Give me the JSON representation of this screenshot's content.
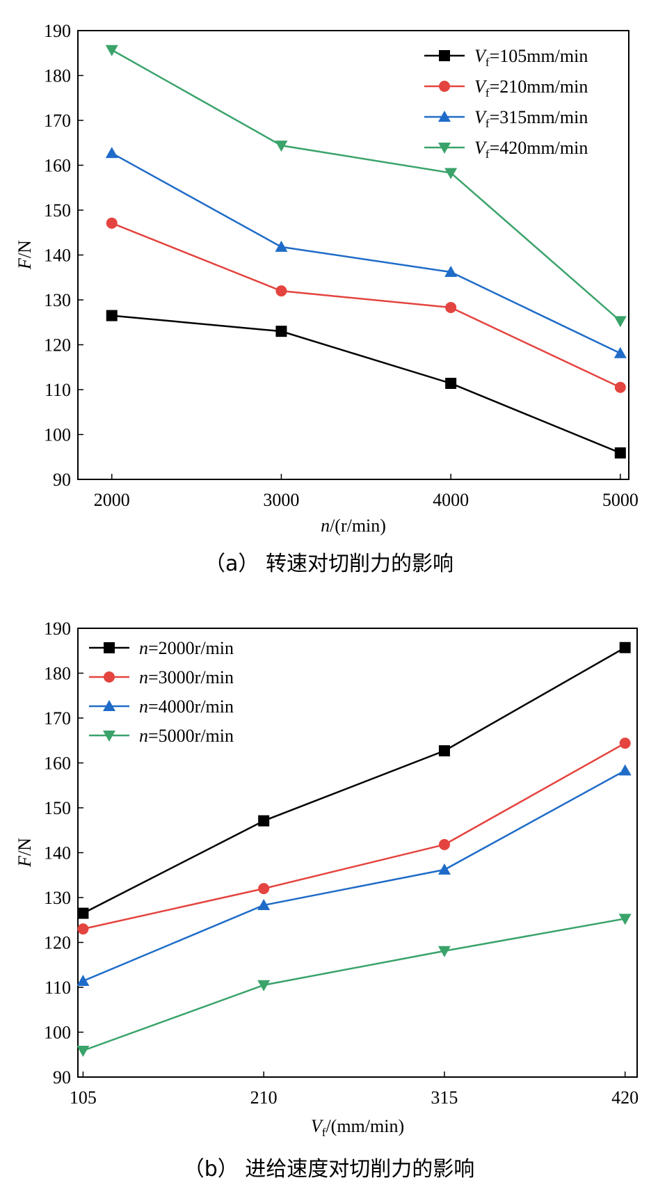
{
  "chart_data": [
    {
      "type": "line",
      "caption": "（a） 转速对切削力的影响",
      "x": [
        2000,
        3000,
        4000,
        5000
      ],
      "xlabel": "n/(r/min)",
      "ylabel": "F/N",
      "xlim": [
        1800,
        5050
      ],
      "ylim": [
        90,
        190
      ],
      "yticks": [
        90,
        100,
        110,
        120,
        130,
        140,
        150,
        160,
        170,
        180,
        190
      ],
      "legend_position": "top-right",
      "series": [
        {
          "name": "Vf=105mm/min",
          "values": [
            126.5,
            123.0,
            111.4,
            95.9
          ],
          "color": "#000000",
          "marker": "square"
        },
        {
          "name": "Vf=210mm/min",
          "values": [
            147.1,
            132.0,
            128.3,
            110.5
          ],
          "color": "#e4443f",
          "marker": "circle"
        },
        {
          "name": "Vf=315mm/min",
          "values": [
            162.7,
            141.8,
            136.2,
            118.1
          ],
          "color": "#1f6cc8",
          "marker": "triangle-up"
        },
        {
          "name": "Vf=420mm/min",
          "values": [
            185.7,
            164.4,
            158.3,
            125.3
          ],
          "color": "#3aa36a",
          "marker": "triangle-down"
        }
      ]
    },
    {
      "type": "line",
      "caption": "（b） 进给速度对切削力的影响",
      "x": [
        105,
        210,
        315,
        420
      ],
      "xlabel": "Vf/(mm/min)",
      "ylabel": "F/N",
      "xlim": [
        102,
        427
      ],
      "ylim": [
        90,
        190
      ],
      "yticks": [
        90,
        100,
        110,
        120,
        130,
        140,
        150,
        160,
        170,
        180,
        190
      ],
      "legend_position": "top-left",
      "series": [
        {
          "name": "n=2000r/min",
          "values": [
            126.5,
            147.1,
            162.7,
            185.7
          ],
          "color": "#000000",
          "marker": "square"
        },
        {
          "name": "n=3000r/min",
          "values": [
            123.0,
            132.0,
            141.8,
            164.4
          ],
          "color": "#e4443f",
          "marker": "circle"
        },
        {
          "name": "n=4000r/min",
          "values": [
            111.4,
            128.3,
            136.2,
            158.3
          ],
          "color": "#1f6cc8",
          "marker": "triangle-up"
        },
        {
          "name": "n=5000r/min",
          "values": [
            95.9,
            110.5,
            118.1,
            125.3
          ],
          "color": "#3aa36a",
          "marker": "triangle-down"
        }
      ]
    }
  ]
}
